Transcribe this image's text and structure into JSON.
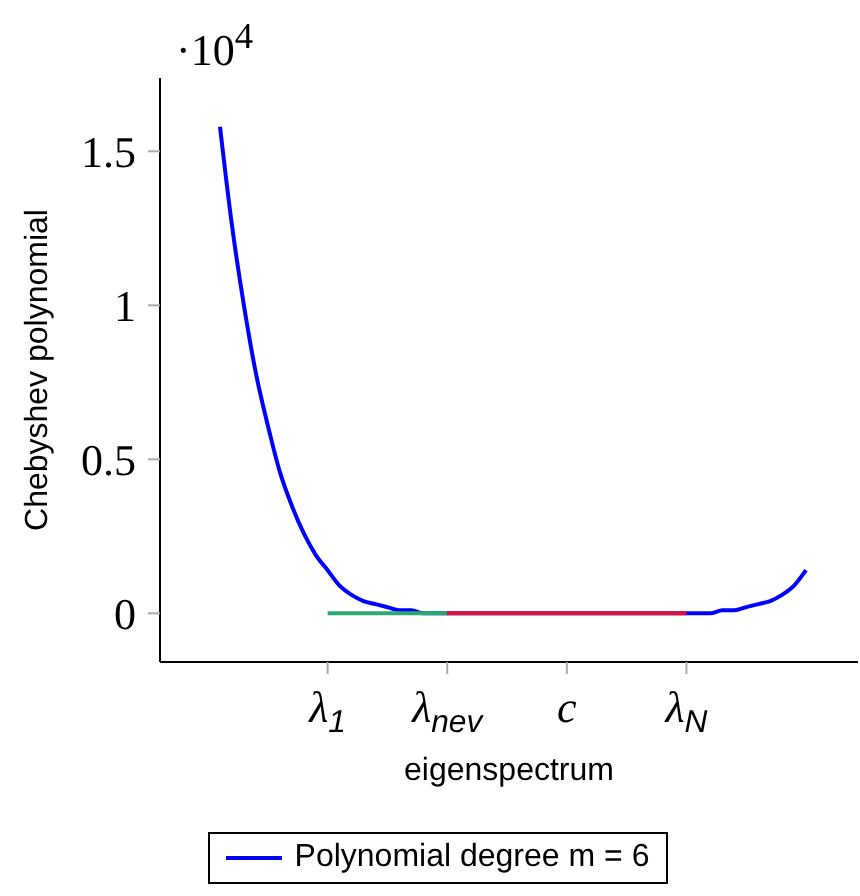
{
  "chart_data": {
    "type": "line",
    "xlabel": "eigenspectrum",
    "ylabel": "Chebyshev polynomial",
    "annotations": [
      "·10$^{4}$"
    ],
    "categories": [
      null,
      null,
      null,
      null,
      null,
      null,
      null,
      null,
      null,
      "λ$_{1}$",
      null,
      null,
      null,
      null,
      null,
      null,
      null,
      null,
      null,
      "λ$_{nev}$",
      null,
      null,
      null,
      null,
      null,
      null,
      null,
      null,
      null,
      "c",
      null,
      null,
      null,
      null,
      null,
      null,
      null,
      null,
      null,
      "λ$_{N}$",
      null,
      null,
      null,
      null,
      null,
      null,
      null,
      null,
      null,
      null
    ],
    "series": [
      {
        "name": "Polynomial degree m = 6",
        "color": "#0000ff",
        "values": [
          1.58,
          1.26,
          1.0,
          0.78,
          0.61,
          0.46,
          0.35,
          0.26,
          0.19,
          0.14,
          0.09,
          0.06,
          0.04,
          0.03,
          0.02,
          0.01,
          0.01,
          0,
          0,
          0,
          0,
          0,
          0,
          0,
          0,
          0,
          0,
          0,
          0,
          0,
          0,
          0,
          0,
          0,
          0,
          0,
          0,
          0,
          0,
          0,
          0,
          0,
          0.01,
          0.01,
          0.02,
          0.03,
          0.04,
          0.06,
          0.09,
          0.14
        ]
      },
      {
        "color": "#2ca870",
        "values": [
          null,
          null,
          null,
          null,
          null,
          null,
          null,
          null,
          null,
          0,
          0,
          0,
          0,
          0,
          0,
          0,
          0,
          0,
          0,
          0,
          null,
          null,
          null,
          null,
          null,
          null,
          null,
          null,
          null,
          null,
          null,
          null,
          null,
          null,
          null,
          null,
          null,
          null,
          null,
          null,
          null,
          null,
          null,
          null,
          null,
          null,
          null,
          null,
          null,
          null
        ]
      },
      {
        "color": "#dc143c",
        "values": [
          null,
          null,
          null,
          null,
          null,
          null,
          null,
          null,
          null,
          null,
          null,
          null,
          null,
          null,
          null,
          null,
          null,
          null,
          null,
          0,
          0,
          0,
          0,
          0,
          0,
          0,
          0,
          0,
          0,
          0,
          0,
          0,
          0,
          0,
          0,
          0,
          0,
          0,
          0,
          0,
          null,
          null,
          null,
          null,
          null,
          null,
          null,
          null,
          null,
          null
        ]
      }
    ],
    "ylim": [
      -0.158,
      1.738
    ],
    "yticks": [
      0,
      0.5,
      1,
      1.5
    ],
    "grid": false,
    "legend": "bottom",
    "line_style": "solid",
    "marker": "none"
  }
}
